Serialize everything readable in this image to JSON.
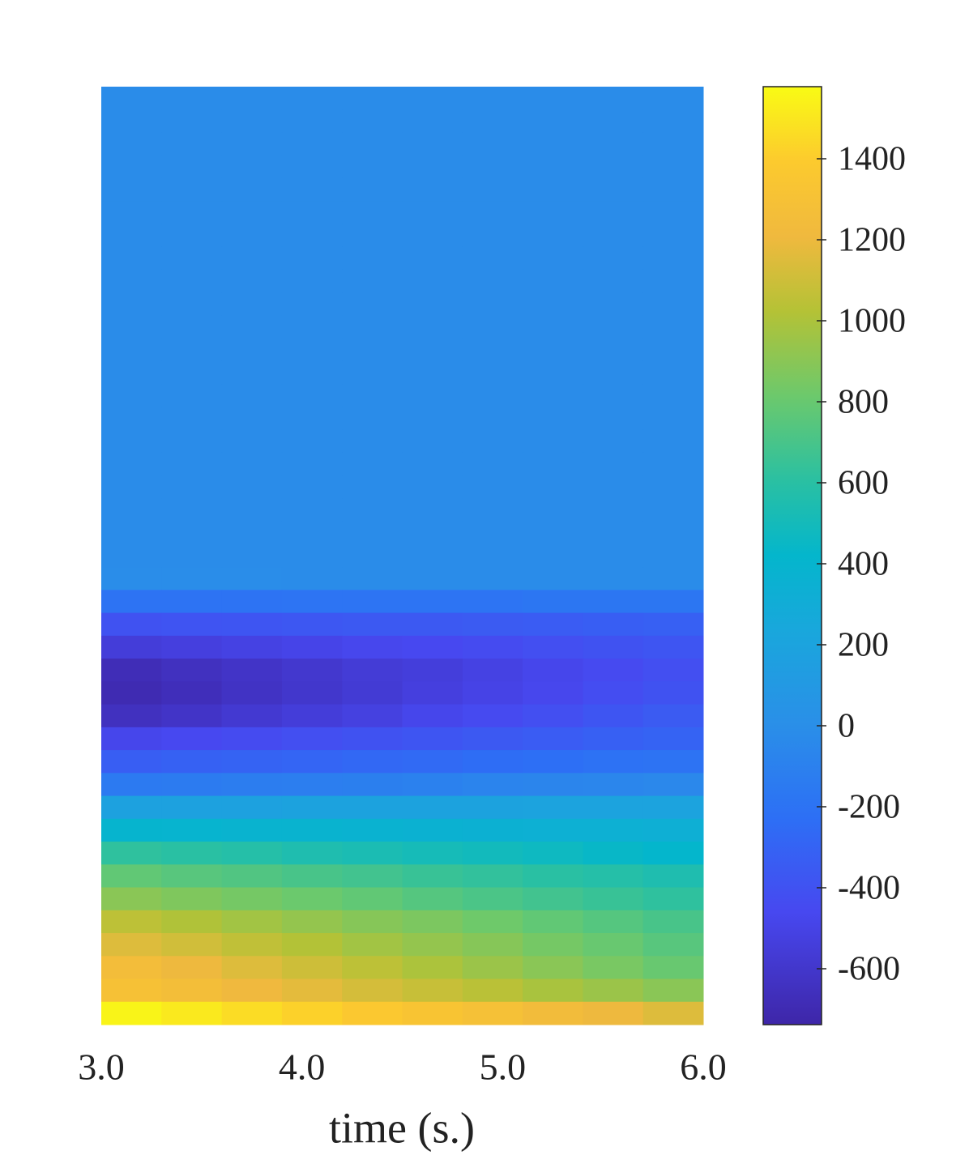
{
  "chart_data": {
    "type": "heatmap",
    "xlabel": "time (s.)",
    "colormap": "parula",
    "x": [
      3.15,
      3.45,
      3.75,
      4.05,
      4.35,
      4.65,
      4.95,
      5.25,
      5.55,
      5.85
    ],
    "xlim": [
      3,
      6
    ],
    "xticks": [
      {
        "value": 3,
        "label": "3.0"
      },
      {
        "value": 4,
        "label": "4.0"
      },
      {
        "value": 5,
        "label": "5.0"
      },
      {
        "value": 6,
        "label": "6.0"
      }
    ],
    "clim": [
      -738,
      1578
    ],
    "cticks": [
      -600,
      -400,
      -200,
      0,
      200,
      400,
      600,
      800,
      1000,
      1200,
      1400
    ],
    "z": [
      [
        -20,
        -20,
        -20,
        -20,
        -20,
        -20,
        -20,
        -20,
        -20,
        -20
      ],
      [
        -20,
        -20,
        -20,
        -20,
        -20,
        -20,
        -20,
        -20,
        -20,
        -20
      ],
      [
        -20,
        -20,
        -20,
        -20,
        -20,
        -20,
        -20,
        -20,
        -20,
        -20
      ],
      [
        -20,
        -20,
        -20,
        -20,
        -20,
        -20,
        -20,
        -20,
        -20,
        -20
      ],
      [
        -20,
        -20,
        -20,
        -20,
        -20,
        -20,
        -20,
        -20,
        -20,
        -20
      ],
      [
        -20,
        -20,
        -20,
        -20,
        -20,
        -20,
        -20,
        -20,
        -20,
        -20
      ],
      [
        -20,
        -20,
        -20,
        -20,
        -20,
        -20,
        -20,
        -20,
        -20,
        -20
      ],
      [
        -20,
        -20,
        -20,
        -20,
        -20,
        -20,
        -20,
        -20,
        -20,
        -20
      ],
      [
        -20,
        -20,
        -20,
        -20,
        -20,
        -20,
        -20,
        -20,
        -20,
        -20
      ],
      [
        -20,
        -20,
        -20,
        -20,
        -20,
        -20,
        -20,
        -20,
        -20,
        -20
      ],
      [
        -20,
        -20,
        -20,
        -20,
        -20,
        -20,
        -20,
        -20,
        -20,
        -20
      ],
      [
        -20,
        -20,
        -20,
        -20,
        -20,
        -20,
        -20,
        -20,
        -20,
        -20
      ],
      [
        -20,
        -20,
        -20,
        -20,
        -20,
        -20,
        -20,
        -20,
        -20,
        -20
      ],
      [
        -20,
        -20,
        -20,
        -20,
        -20,
        -20,
        -20,
        -20,
        -20,
        -20
      ],
      [
        -20,
        -20,
        -20,
        -20,
        -20,
        -20,
        -20,
        -20,
        -20,
        -20
      ],
      [
        -20,
        -20,
        -20,
        -20,
        -20,
        -20,
        -20,
        -20,
        -20,
        -20
      ],
      [
        -20,
        -20,
        -20,
        -20,
        -20,
        -20,
        -20,
        -20,
        -20,
        -20
      ],
      [
        -20,
        -20,
        -20,
        -20,
        -20,
        -20,
        -20,
        -20,
        -20,
        -20
      ],
      [
        -20,
        -20,
        -20,
        -20,
        -20,
        -20,
        -20,
        -20,
        -20,
        -20
      ],
      [
        -20,
        -20,
        -20,
        -20,
        -20,
        -20,
        -20,
        -20,
        -20,
        -20
      ],
      [
        -20,
        -20,
        -20,
        -20,
        -20,
        -20,
        -20,
        -20,
        -20,
        -20
      ],
      [
        -10,
        -10,
        -10,
        -20,
        -20,
        -20,
        -20,
        -20,
        -20,
        -20
      ],
      [
        -200,
        -200,
        -200,
        -190,
        -190,
        -190,
        -190,
        -180,
        -180,
        -180
      ],
      [
        -400,
        -390,
        -380,
        -370,
        -360,
        -360,
        -350,
        -340,
        -330,
        -320
      ],
      [
        -550,
        -530,
        -510,
        -490,
        -470,
        -460,
        -440,
        -420,
        -400,
        -380
      ],
      [
        -680,
        -650,
        -620,
        -590,
        -560,
        -540,
        -510,
        -480,
        -450,
        -420
      ],
      [
        -700,
        -670,
        -630,
        -600,
        -570,
        -530,
        -500,
        -470,
        -430,
        -400
      ],
      [
        -650,
        -620,
        -580,
        -550,
        -520,
        -480,
        -450,
        -420,
        -380,
        -350
      ],
      [
        -480,
        -460,
        -440,
        -420,
        -400,
        -380,
        -360,
        -340,
        -320,
        -300
      ],
      [
        -330,
        -310,
        -300,
        -290,
        -270,
        -260,
        -240,
        -230,
        -210,
        -200
      ],
      [
        -150,
        -140,
        -130,
        -120,
        -110,
        -100,
        -80,
        -70,
        -60,
        -50
      ],
      [
        180,
        180,
        180,
        190,
        190,
        190,
        190,
        200,
        200,
        200
      ],
      [
        400,
        390,
        380,
        380,
        370,
        360,
        350,
        340,
        340,
        330
      ],
      [
        620,
        600,
        580,
        550,
        530,
        510,
        490,
        470,
        440,
        420
      ],
      [
        780,
        750,
        730,
        700,
        680,
        650,
        630,
        600,
        580,
        550
      ],
      [
        900,
        870,
        840,
        810,
        780,
        740,
        710,
        680,
        650,
        620
      ],
      [
        1050,
        1010,
        970,
        930,
        890,
        860,
        820,
        780,
        740,
        700
      ],
      [
        1150,
        1110,
        1060,
        1020,
        970,
        930,
        890,
        840,
        800,
        750
      ],
      [
        1250,
        1200,
        1150,
        1100,
        1050,
        1000,
        950,
        900,
        850,
        800
      ],
      [
        1300,
        1260,
        1210,
        1170,
        1120,
        1080,
        1040,
        990,
        950,
        900
      ],
      [
        1550,
        1510,
        1460,
        1420,
        1370,
        1330,
        1290,
        1240,
        1200,
        1150
      ]
    ]
  }
}
